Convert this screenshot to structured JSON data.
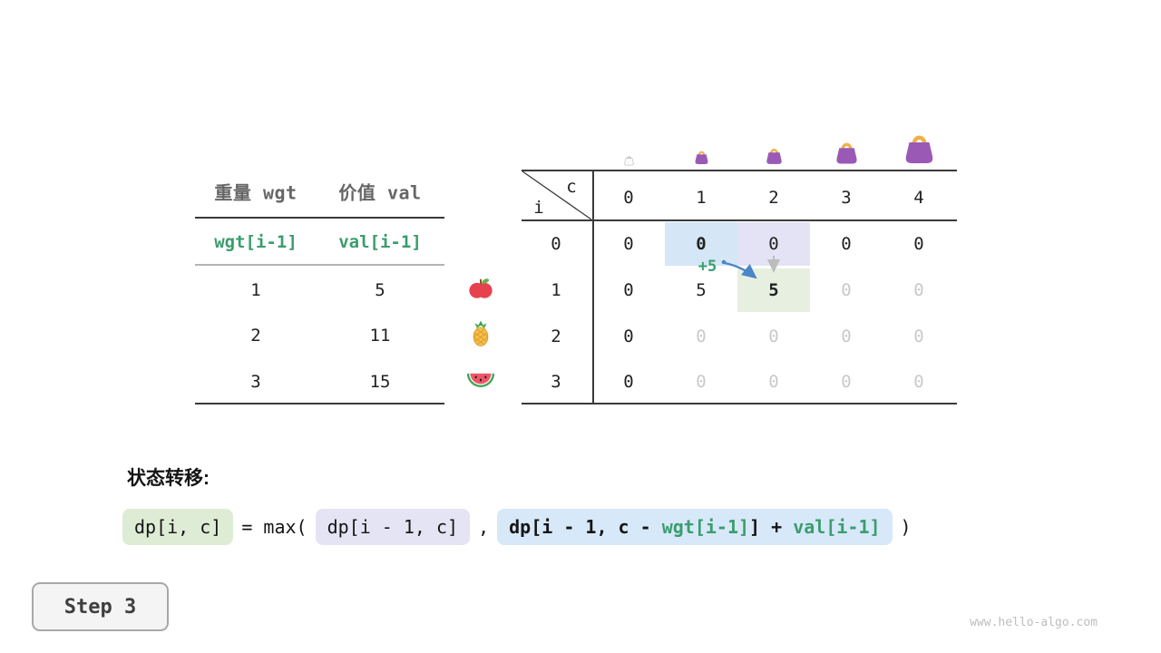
{
  "page": {
    "watermark": "www.hello-algo.com",
    "step": {
      "label": "Step 3"
    }
  },
  "items_table": {
    "col_headers": [
      "重量 wgt",
      "价值 val"
    ],
    "sub_headers": [
      "wgt[i-1]",
      "val[i-1]"
    ],
    "rows": [
      {
        "wgt": "1",
        "val": "5",
        "icon": "apple-icon"
      },
      {
        "wgt": "2",
        "val": "11",
        "icon": "pineapple-icon"
      },
      {
        "wgt": "3",
        "val": "15",
        "icon": "watermelon-icon"
      }
    ]
  },
  "dp_table": {
    "corner": {
      "row_var": "i",
      "col_var": "c"
    },
    "capacity_icon": "handbag-icon",
    "col_headers": [
      "0",
      "1",
      "2",
      "3",
      "4"
    ],
    "row_headers": [
      "0",
      "1",
      "2",
      "3"
    ],
    "cells": [
      [
        "0",
        "0",
        "0",
        "0",
        "0"
      ],
      [
        "0",
        "5",
        "5",
        "0",
        "0"
      ],
      [
        "0",
        "0",
        "0",
        "0",
        "0"
      ],
      [
        "0",
        "0",
        "0",
        "0",
        "0"
      ]
    ],
    "cell_styles": [
      [
        "",
        "hl-blue bold",
        "hl-purple",
        "",
        ""
      ],
      [
        "",
        "",
        "hl-green bold",
        "dim",
        "dim"
      ],
      [
        "",
        "dim",
        "dim",
        "dim",
        "dim"
      ],
      [
        "",
        "dim",
        "dim",
        "dim",
        "dim"
      ]
    ],
    "annotation": "+5"
  },
  "formula": {
    "section_label": "状态转移:",
    "lhs": "dp[i, c]",
    "eq_max": "= max(",
    "arg1": "dp[i - 1, c]",
    "comma": ",",
    "arg2_prefix": "dp[i - 1, c - ",
    "arg2_wgt": "wgt[i-1]",
    "arg2_mid": "] + ",
    "arg2_val": "val[i-1]",
    "close": ")"
  },
  "colors": {
    "accent_green": "#3a9d6e",
    "hl_blue": "#d5e6f6",
    "hl_purple": "#e3e3f5",
    "hl_green": "#e7f0e0",
    "chip_green": "#dfecd5",
    "chip_purple": "#e4e4f4",
    "chip_blue": "#d7e8f8",
    "dim_text": "#c9c9c9",
    "bag_fill": "#9b59b6",
    "bag_handle": "#f0b04a",
    "arrow_blue": "#4a86c8",
    "arrow_gray": "#bdbdbd"
  }
}
